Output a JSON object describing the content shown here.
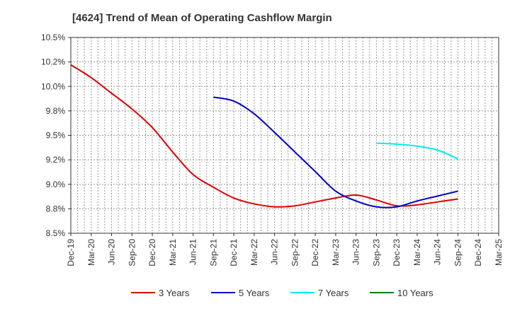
{
  "chart_data": {
    "type": "line",
    "title": "[4624]  Trend of Mean of Operating Cashflow Margin",
    "xlabel": "",
    "ylabel": "",
    "x_ticks": [
      "Dec-19",
      "Mar-20",
      "Jun-20",
      "Sep-20",
      "Dec-20",
      "Mar-21",
      "Jun-21",
      "Sep-21",
      "Dec-21",
      "Mar-22",
      "Jun-22",
      "Sep-22",
      "Dec-22",
      "Mar-23",
      "Jun-23",
      "Sep-23",
      "Dec-23",
      "Mar-24",
      "Jun-24",
      "Sep-24",
      "Dec-24",
      "Mar-25"
    ],
    "y_ticks": [
      "8.5%",
      "8.8%",
      "9.0%",
      "9.2%",
      "9.5%",
      "9.8%",
      "10.0%",
      "10.2%",
      "10.5%"
    ],
    "ylim": [
      8.5,
      10.5
    ],
    "grid": true,
    "legend_position": "bottom",
    "series": [
      {
        "name": "3 Years",
        "color": "#dd0000",
        "x": [
          0,
          1,
          2,
          3,
          4,
          5,
          6,
          7,
          8,
          9,
          10,
          11,
          12,
          13,
          14,
          15,
          16,
          17,
          18,
          19
        ],
        "values": [
          10.22,
          10.09,
          9.93,
          9.77,
          9.58,
          9.33,
          9.1,
          8.97,
          8.86,
          8.8,
          8.77,
          8.78,
          8.82,
          8.86,
          8.89,
          8.84,
          8.78,
          8.79,
          8.82,
          8.85
        ]
      },
      {
        "name": "5 Years",
        "color": "#0000cc",
        "x": [
          7,
          8,
          9,
          10,
          11,
          12,
          13,
          14,
          15,
          16,
          17,
          18,
          19
        ],
        "values": [
          9.89,
          9.85,
          9.72,
          9.53,
          9.33,
          9.13,
          8.93,
          8.83,
          8.77,
          8.77,
          8.83,
          8.88,
          8.93
        ]
      },
      {
        "name": "7 Years",
        "color": "#00eeee",
        "x": [
          15,
          16,
          17,
          18,
          19
        ],
        "values": [
          9.42,
          9.41,
          9.39,
          9.35,
          9.26
        ]
      },
      {
        "name": "10 Years",
        "color": "#008000",
        "x": [],
        "values": []
      }
    ]
  }
}
